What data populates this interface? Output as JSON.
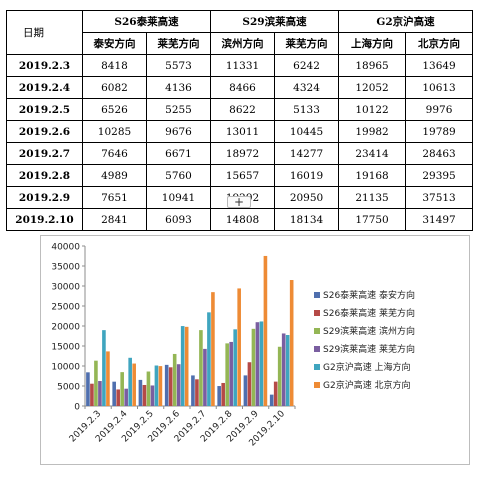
{
  "table": {
    "corner": "日期",
    "highways": [
      "S26泰莱高速",
      "S29滨莱高速",
      "G2京沪高速"
    ],
    "directions": [
      "泰安方向",
      "莱芜方向",
      "滨州方向",
      "莱芜方向",
      "上海方向",
      "北京方向"
    ],
    "rows": [
      {
        "date": "2019.2.3",
        "values": [
          "8418",
          "5573",
          "11331",
          "6242",
          "18965",
          "13649"
        ]
      },
      {
        "date": "2019.2.4",
        "values": [
          "6082",
          "4136",
          "8466",
          "4324",
          "12052",
          "10613"
        ]
      },
      {
        "date": "2019.2.5",
        "values": [
          "6526",
          "5255",
          "8622",
          "5133",
          "10122",
          "9976"
        ]
      },
      {
        "date": "2019.2.6",
        "values": [
          "10285",
          "9676",
          "13011",
          "10445",
          "19982",
          "19789"
        ]
      },
      {
        "date": "2019.2.7",
        "values": [
          "7646",
          "6671",
          "18972",
          "14277",
          "23414",
          "28463"
        ]
      },
      {
        "date": "2019.2.8",
        "values": [
          "4989",
          "5760",
          "15657",
          "16019",
          "19168",
          "29395"
        ]
      },
      {
        "date": "2019.2.9",
        "values": [
          "7651",
          "10941",
          "19292",
          "20950",
          "21135",
          "37513"
        ]
      },
      {
        "date": "2019.2.10",
        "values": [
          "2841",
          "6093",
          "14808",
          "18134",
          "17750",
          "31497"
        ]
      }
    ]
  },
  "add_button": "+",
  "chart_data": {
    "type": "bar",
    "title": "",
    "xlabel": "",
    "ylabel": "",
    "ylim": [
      0,
      40000
    ],
    "yticks": [
      0,
      5000,
      10000,
      15000,
      20000,
      25000,
      30000,
      35000,
      40000
    ],
    "grid": false,
    "legend": "right",
    "categories": [
      "2019.2.3",
      "2019.2.4",
      "2019.2.5",
      "2019.2.6",
      "2019.2.7",
      "2019.2.8",
      "2019.2.9",
      "2019.2.10"
    ],
    "series": [
      {
        "name": "S26泰莱高速 泰安方向",
        "color": "#4f6fae",
        "values": [
          8418,
          6082,
          6526,
          10285,
          7646,
          4989,
          7651,
          2841
        ]
      },
      {
        "name": "S26泰莱高速 莱芜方向",
        "color": "#b54a47",
        "values": [
          5573,
          4136,
          5255,
          9676,
          6671,
          5760,
          10941,
          6093
        ]
      },
      {
        "name": "S29滨莱高速 滨州方向",
        "color": "#94b655",
        "values": [
          11331,
          8466,
          8622,
          13011,
          18972,
          15657,
          19292,
          14808
        ]
      },
      {
        "name": "S29滨莱高速 莱芜方向",
        "color": "#7a5ea0",
        "values": [
          6242,
          4324,
          5133,
          10445,
          14277,
          16019,
          20950,
          18134
        ]
      },
      {
        "name": "G2京沪高速 上海方向",
        "color": "#3fa5bf",
        "values": [
          18965,
          12052,
          10122,
          19982,
          23414,
          19168,
          21135,
          17750
        ]
      },
      {
        "name": "G2京沪高速 北京方向",
        "color": "#ee8b35",
        "values": [
          13649,
          10613,
          9976,
          19789,
          28463,
          29395,
          37513,
          31497
        ]
      }
    ]
  }
}
